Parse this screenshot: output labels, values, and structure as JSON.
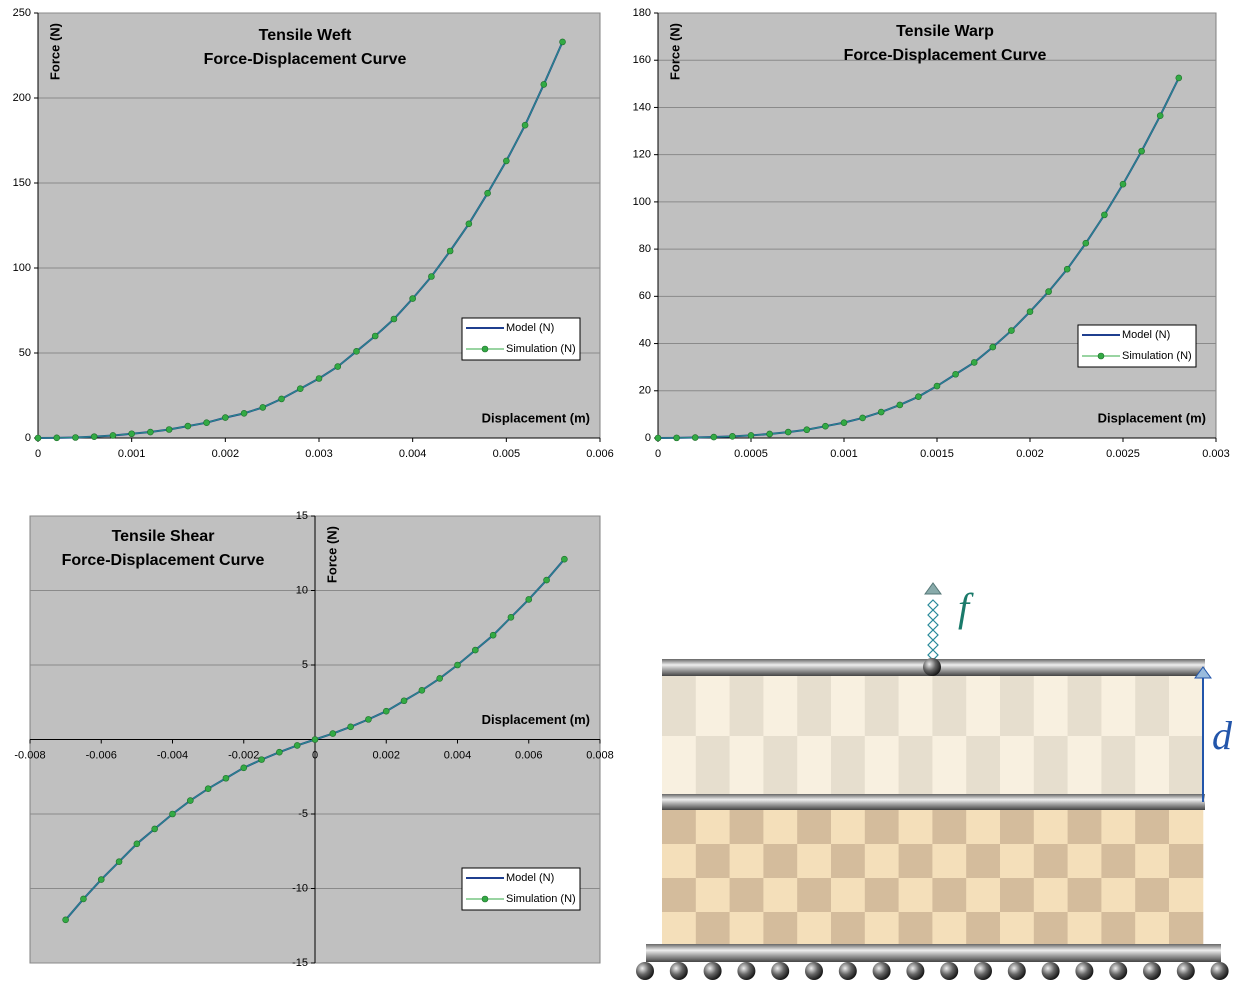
{
  "chart_data": [
    {
      "type": "line",
      "title": "Tensile Weft",
      "subtitle": "Force-Displacement Curve",
      "x_label": "Displacement (m)",
      "y_label": "Force (N)",
      "x": [
        0,
        0.0002,
        0.0004,
        0.0006,
        0.0008,
        0.001,
        0.0012,
        0.0014,
        0.0016,
        0.0018,
        0.002,
        0.0022,
        0.0024,
        0.0026,
        0.0028,
        0.003,
        0.0032,
        0.0034,
        0.0036,
        0.0038,
        0.004,
        0.0042,
        0.0044,
        0.0046,
        0.0048,
        0.005,
        0.0052,
        0.0054,
        0.0056
      ],
      "series": [
        {
          "name": "Model (N)",
          "color": "#1f3f8f",
          "values": [
            0,
            0.1,
            0.3,
            0.8,
            1.5,
            2.5,
            3.5,
            5,
            7,
            9,
            12,
            14.5,
            18,
            23,
            29,
            35,
            42,
            51,
            60,
            70,
            82,
            95,
            110,
            126,
            144,
            163,
            184,
            208,
            233
          ]
        },
        {
          "name": "Simulation (N)",
          "color": "#33aa44",
          "values": [
            0,
            0.1,
            0.3,
            0.8,
            1.5,
            2.5,
            3.5,
            5,
            7,
            9,
            12,
            14.5,
            18,
            23,
            29,
            35,
            42,
            51,
            60,
            70,
            82,
            95,
            110,
            126,
            144,
            163,
            184,
            208,
            233
          ]
        }
      ],
      "xlim": [
        0,
        0.006
      ],
      "xticks": [
        0,
        0.001,
        0.002,
        0.003,
        0.004,
        0.005,
        0.006
      ],
      "ylim": [
        0,
        250
      ],
      "yticks": [
        0,
        50,
        100,
        150,
        200,
        250
      ],
      "grid": true,
      "legend": "lower right"
    },
    {
      "type": "line",
      "title": "Tensile Warp",
      "subtitle": "Force-Displacement Curve",
      "x_label": "Displacement (m)",
      "y_label": "Force (N)",
      "x": [
        0,
        0.0001,
        0.0002,
        0.0003,
        0.0004,
        0.0005,
        0.0006,
        0.0007,
        0.0008,
        0.0009,
        0.001,
        0.0011,
        0.0012,
        0.0013,
        0.0014,
        0.0015,
        0.0016,
        0.0017,
        0.0018,
        0.0019,
        0.002,
        0.0021,
        0.0022,
        0.0023,
        0.0024,
        0.0025,
        0.0026,
        0.0027,
        0.0028
      ],
      "series": [
        {
          "name": "Model (N)",
          "color": "#1f3f8f",
          "values": [
            0,
            0.05,
            0.2,
            0.4,
            0.7,
            1.1,
            1.7,
            2.5,
            3.5,
            5,
            6.5,
            8.5,
            11,
            14,
            17.5,
            22,
            27,
            32,
            38.5,
            45.5,
            53.5,
            62,
            71.5,
            82.5,
            94.5,
            107.5,
            121.5,
            136.5,
            152.5
          ]
        },
        {
          "name": "Simulation (N)",
          "color": "#33aa44",
          "values": [
            0,
            0.05,
            0.2,
            0.4,
            0.7,
            1.1,
            1.7,
            2.5,
            3.5,
            5,
            6.5,
            8.5,
            11,
            14,
            17.5,
            22,
            27,
            32,
            38.5,
            45.5,
            53.5,
            62,
            71.5,
            82.5,
            94.5,
            107.5,
            121.5,
            136.5,
            152.5
          ]
        }
      ],
      "xlim": [
        0,
        0.003
      ],
      "xticks": [
        0,
        0.0005,
        0.001,
        0.0015,
        0.002,
        0.0025,
        0.003
      ],
      "ylim": [
        0,
        180
      ],
      "yticks": [
        0,
        20,
        40,
        60,
        80,
        100,
        120,
        140,
        160,
        180
      ],
      "grid": true,
      "legend": "lower right"
    },
    {
      "type": "line",
      "title": "Tensile Shear",
      "subtitle": "Force-Displacement Curve",
      "x_label": "Displacement (m)",
      "y_label": "Force (N)",
      "x": [
        -0.007,
        -0.0065,
        -0.006,
        -0.0055,
        -0.005,
        -0.0045,
        -0.004,
        -0.0035,
        -0.003,
        -0.0025,
        -0.002,
        -0.0015,
        -0.001,
        -0.0005,
        0,
        0.0005,
        0.001,
        0.0015,
        0.002,
        0.0025,
        0.003,
        0.0035,
        0.004,
        0.0045,
        0.005,
        0.0055,
        0.006,
        0.0065,
        0.007
      ],
      "series": [
        {
          "name": "Model (N)",
          "color": "#1f3f8f",
          "values": [
            -12.1,
            -10.7,
            -9.4,
            -8.2,
            -7,
            -6,
            -5,
            -4.1,
            -3.3,
            -2.6,
            -1.9,
            -1.35,
            -0.85,
            -0.4,
            0,
            0.4,
            0.85,
            1.35,
            1.9,
            2.6,
            3.3,
            4.1,
            5,
            6,
            7,
            8.2,
            9.4,
            10.7,
            12.1
          ]
        },
        {
          "name": "Simulation (N)",
          "color": "#33aa44",
          "values": [
            -12.1,
            -10.7,
            -9.4,
            -8.2,
            -7,
            -6,
            -5,
            -4.1,
            -3.3,
            -2.6,
            -1.9,
            -1.35,
            -0.85,
            -0.4,
            0,
            0.4,
            0.85,
            1.35,
            1.9,
            2.6,
            3.3,
            4.1,
            5,
            6,
            7,
            8.2,
            9.4,
            10.7,
            12.1
          ]
        }
      ],
      "xlim": [
        -0.008,
        0.008
      ],
      "xticks": [
        -0.008,
        -0.006,
        -0.004,
        -0.002,
        0,
        0.002,
        0.004,
        0.006,
        0.008
      ],
      "ylim": [
        -15,
        15
      ],
      "yticks": [
        -15,
        -10,
        -5,
        5,
        10,
        15
      ],
      "grid": true,
      "legend": "lower right"
    }
  ],
  "diagram": {
    "force_label": "f",
    "displacement_label": "d"
  }
}
